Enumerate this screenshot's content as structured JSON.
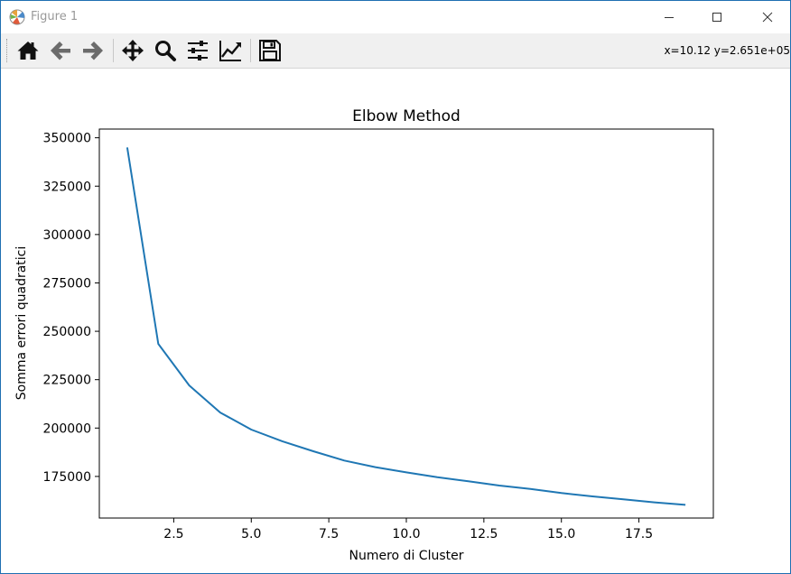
{
  "window": {
    "title": "Figure 1",
    "icons": {
      "app": "matplotlib-icon",
      "minimize": "minimize-icon",
      "maximize": "maximize-icon",
      "close": "close-icon"
    }
  },
  "toolbar": {
    "buttons": [
      {
        "name": "home",
        "icon": "home-icon"
      },
      {
        "name": "back",
        "icon": "arrow-left-icon"
      },
      {
        "name": "forward",
        "icon": "arrow-right-icon"
      },
      {
        "name": "pan",
        "icon": "move-icon"
      },
      {
        "name": "zoom",
        "icon": "magnifier-icon"
      },
      {
        "name": "configure-subplots",
        "icon": "sliders-icon"
      },
      {
        "name": "edit-axis",
        "icon": "line-chart-icon"
      },
      {
        "name": "save",
        "icon": "floppy-icon"
      }
    ],
    "coords": "x=10.12 y=2.651e+05"
  },
  "chart_data": {
    "type": "line",
    "title": "Elbow Method",
    "xlabel": "Numero di Cluster",
    "ylabel": "Somma errori quadratici",
    "xlim": [
      0.1,
      19.9
    ],
    "ylim": [
      153500,
      354500
    ],
    "xticks": [
      2.5,
      5.0,
      7.5,
      10.0,
      12.5,
      15.0,
      17.5
    ],
    "xtick_labels": [
      "2.5",
      "5.0",
      "7.5",
      "10.0",
      "12.5",
      "15.0",
      "17.5"
    ],
    "yticks": [
      175000,
      200000,
      225000,
      250000,
      275000,
      300000,
      325000,
      350000
    ],
    "ytick_labels": [
      "175000",
      "200000",
      "225000",
      "250000",
      "275000",
      "300000",
      "325000",
      "350000"
    ],
    "grid": false,
    "line_color": "#1f77b4",
    "series": [
      {
        "x": [
          1,
          2,
          3,
          4,
          5,
          6,
          7,
          8,
          9,
          10,
          11,
          12,
          13,
          14,
          15,
          16,
          17,
          18,
          19
        ],
        "values": [
          345000,
          243500,
          222000,
          208000,
          199200,
          193200,
          188000,
          183200,
          179800,
          177100,
          174600,
          172500,
          170300,
          168500,
          166400,
          164700,
          163200,
          161600,
          160300
        ]
      }
    ]
  }
}
